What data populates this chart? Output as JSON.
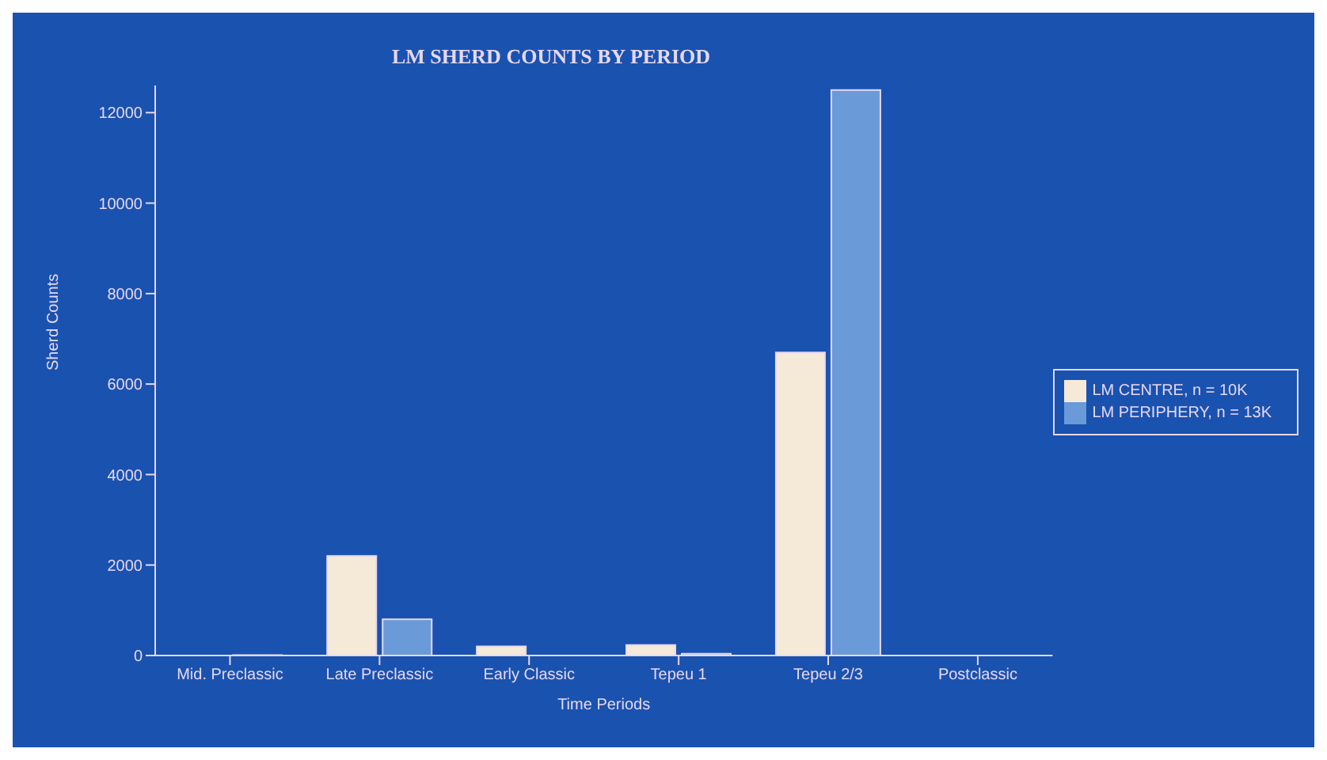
{
  "chart_data": {
    "type": "bar",
    "title": "LM SHERD COUNTS BY PERIOD",
    "xlabel": "Time Periods",
    "ylabel": "Sherd Counts",
    "categories": [
      "Mid. Preclassic",
      "Late Preclassic",
      "Early Classic",
      "Tepeu 1",
      "Tepeu 2/3",
      "Postclassic"
    ],
    "series": [
      {
        "name": "LM CENTRE, n = 10K",
        "color": "#f5ead8",
        "values": [
          null,
          2200,
          200,
          230,
          6700,
          null
        ]
      },
      {
        "name": "LM PERIPHERY, n = 13K",
        "color": "#6a9ad8",
        "values": [
          10,
          800,
          null,
          40,
          12500,
          null
        ]
      }
    ],
    "ylim": [
      0,
      12600
    ],
    "yticks": [
      0,
      2000,
      4000,
      6000,
      8000,
      10000,
      12000
    ],
    "grid": false,
    "legend": "right"
  }
}
